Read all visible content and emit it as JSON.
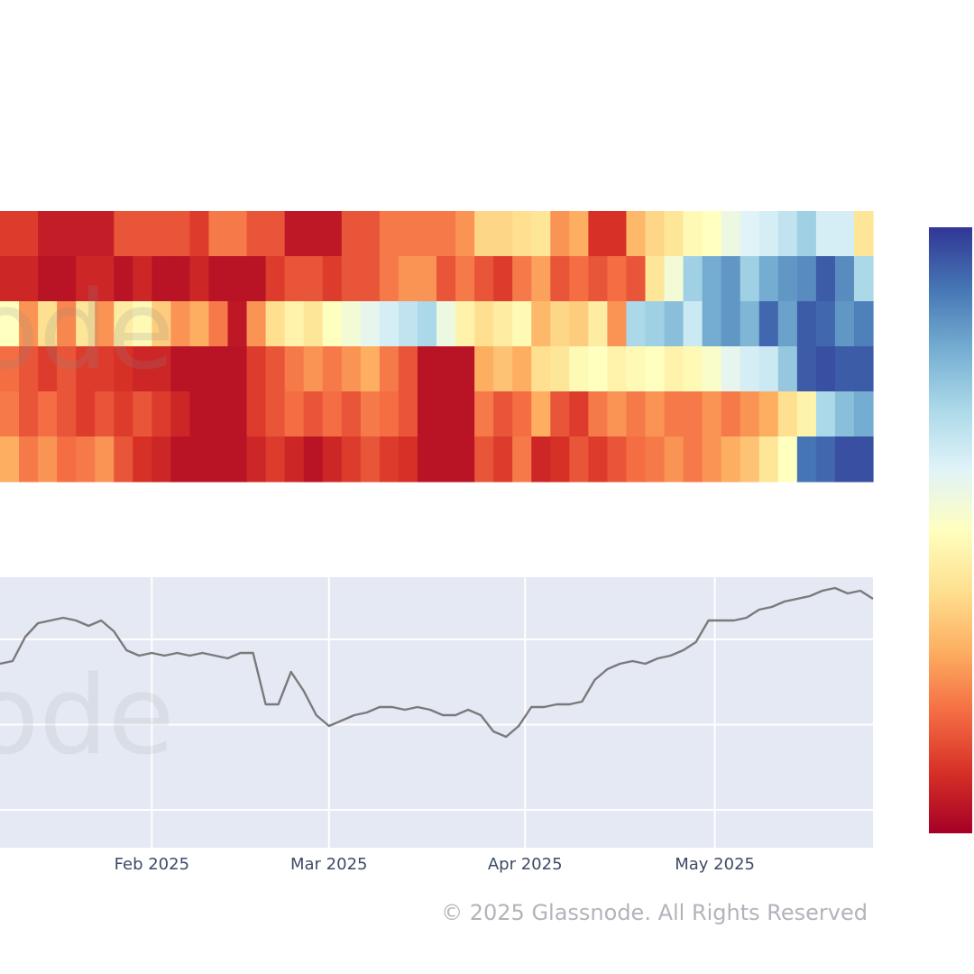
{
  "watermark": "ode",
  "copyright": "© 2025 Glassnode. All Rights Reserved",
  "colors": {
    "plot_bg": "#e5e9f4",
    "grid": "#ffffff",
    "price_line": "#7a7a7a"
  },
  "chart_data": [
    {
      "type": "heatmap",
      "rows": 6,
      "colorscale": "RdYlBu",
      "zrange": [
        0,
        1
      ],
      "x_range": [
        "2025-01-08",
        "2025-05-26"
      ],
      "z": [
        [
          0.12,
          0.12,
          0.06,
          0.06,
          0.06,
          0.06,
          0.16,
          0.16,
          0.16,
          0.16,
          0.12,
          0.22,
          0.22,
          0.16,
          0.16,
          0.05,
          0.05,
          0.05,
          0.16,
          0.16,
          0.22,
          0.22,
          0.22,
          0.22,
          0.26,
          0.38,
          0.38,
          0.4,
          0.42,
          0.26,
          0.3,
          0.1,
          0.1,
          0.32,
          0.38,
          0.42,
          0.48,
          0.5,
          0.56,
          0.6,
          0.62,
          0.66,
          0.72,
          0.62,
          0.62,
          0.42
        ],
        [
          0.08,
          0.08,
          0.04,
          0.04,
          0.08,
          0.08,
          0.04,
          0.08,
          0.04,
          0.04,
          0.08,
          0.04,
          0.04,
          0.04,
          0.12,
          0.16,
          0.16,
          0.12,
          0.16,
          0.16,
          0.22,
          0.26,
          0.26,
          0.16,
          0.22,
          0.16,
          0.12,
          0.22,
          0.28,
          0.16,
          0.2,
          0.16,
          0.2,
          0.16,
          0.42,
          0.54,
          0.72,
          0.8,
          0.84,
          0.72,
          0.8,
          0.84,
          0.86,
          0.94,
          0.86,
          0.7
        ],
        [
          0.5,
          0.26,
          0.4,
          0.24,
          0.42,
          0.26,
          0.44,
          0.48,
          0.36,
          0.26,
          0.3,
          0.22,
          0.05,
          0.26,
          0.4,
          0.46,
          0.42,
          0.5,
          0.54,
          0.58,
          0.62,
          0.66,
          0.7,
          0.56,
          0.46,
          0.4,
          0.44,
          0.48,
          0.32,
          0.38,
          0.36,
          0.44,
          0.26,
          0.7,
          0.72,
          0.76,
          0.64,
          0.8,
          0.84,
          0.78,
          0.92,
          0.82,
          0.94,
          0.92,
          0.84,
          0.88
        ],
        [
          0.2,
          0.16,
          0.12,
          0.16,
          0.12,
          0.12,
          0.1,
          0.08,
          0.08,
          0.04,
          0.04,
          0.04,
          0.04,
          0.12,
          0.16,
          0.22,
          0.26,
          0.22,
          0.26,
          0.3,
          0.22,
          0.16,
          0.04,
          0.04,
          0.04,
          0.3,
          0.34,
          0.3,
          0.4,
          0.42,
          0.48,
          0.5,
          0.46,
          0.48,
          0.5,
          0.46,
          0.48,
          0.52,
          0.58,
          0.62,
          0.64,
          0.74,
          0.94,
          0.96,
          0.94,
          0.94
        ],
        [
          0.22,
          0.16,
          0.2,
          0.16,
          0.12,
          0.16,
          0.12,
          0.16,
          0.12,
          0.08,
          0.04,
          0.04,
          0.04,
          0.12,
          0.16,
          0.2,
          0.16,
          0.2,
          0.16,
          0.22,
          0.2,
          0.16,
          0.04,
          0.04,
          0.04,
          0.22,
          0.16,
          0.2,
          0.3,
          0.16,
          0.12,
          0.22,
          0.26,
          0.22,
          0.26,
          0.22,
          0.22,
          0.26,
          0.22,
          0.26,
          0.3,
          0.4,
          0.46,
          0.7,
          0.76,
          0.8
        ],
        [
          0.3,
          0.22,
          0.26,
          0.2,
          0.22,
          0.26,
          0.16,
          0.1,
          0.08,
          0.04,
          0.04,
          0.04,
          0.04,
          0.08,
          0.12,
          0.08,
          0.04,
          0.08,
          0.12,
          0.16,
          0.12,
          0.1,
          0.04,
          0.04,
          0.04,
          0.16,
          0.12,
          0.22,
          0.08,
          0.1,
          0.16,
          0.12,
          0.16,
          0.2,
          0.22,
          0.26,
          0.22,
          0.26,
          0.3,
          0.34,
          0.42,
          0.5,
          0.9,
          0.92,
          0.96,
          0.96
        ]
      ]
    },
    {
      "type": "line",
      "x_ticks": [
        "Feb 2025",
        "Mar 2025",
        "Apr 2025",
        "May 2025"
      ],
      "x_range": [
        "2025-01-08",
        "2025-05-26"
      ],
      "y_range": [
        0,
        100
      ],
      "grid": true,
      "x": [
        "2025-01-08",
        "2025-01-10",
        "2025-01-12",
        "2025-01-14",
        "2025-01-16",
        "2025-01-18",
        "2025-01-20",
        "2025-01-22",
        "2025-01-24",
        "2025-01-26",
        "2025-01-28",
        "2025-01-30",
        "2025-02-01",
        "2025-02-03",
        "2025-02-05",
        "2025-02-07",
        "2025-02-09",
        "2025-02-11",
        "2025-02-13",
        "2025-02-15",
        "2025-02-17",
        "2025-02-19",
        "2025-02-21",
        "2025-02-23",
        "2025-02-25",
        "2025-02-27",
        "2025-03-01",
        "2025-03-03",
        "2025-03-05",
        "2025-03-07",
        "2025-03-09",
        "2025-03-11",
        "2025-03-13",
        "2025-03-15",
        "2025-03-17",
        "2025-03-19",
        "2025-03-21",
        "2025-03-23",
        "2025-03-25",
        "2025-03-27",
        "2025-03-29",
        "2025-03-31",
        "2025-04-02",
        "2025-04-04",
        "2025-04-06",
        "2025-04-08",
        "2025-04-10",
        "2025-04-12",
        "2025-04-14",
        "2025-04-16",
        "2025-04-18",
        "2025-04-20",
        "2025-04-22",
        "2025-04-24",
        "2025-04-26",
        "2025-04-28",
        "2025-04-30",
        "2025-05-02",
        "2025-05-04",
        "2025-05-06",
        "2025-05-08",
        "2025-05-10",
        "2025-05-12",
        "2025-05-14",
        "2025-05-16",
        "2025-05-18",
        "2025-05-20",
        "2025-05-22",
        "2025-05-24",
        "2025-05-26"
      ],
      "y": [
        68,
        69,
        78,
        83,
        84,
        85,
        84,
        82,
        84,
        80,
        73,
        71,
        72,
        71,
        72,
        71,
        72,
        71,
        70,
        72,
        72,
        53,
        53,
        65,
        58,
        49,
        45,
        47,
        49,
        50,
        52,
        52,
        51,
        52,
        51,
        49,
        49,
        51,
        49,
        43,
        41,
        45,
        52,
        52,
        53,
        53,
        54,
        62,
        66,
        68,
        69,
        68,
        70,
        71,
        73,
        76,
        84,
        84,
        84,
        85,
        88,
        89,
        91,
        92,
        93,
        95,
        96,
        94,
        95,
        92
      ]
    }
  ]
}
